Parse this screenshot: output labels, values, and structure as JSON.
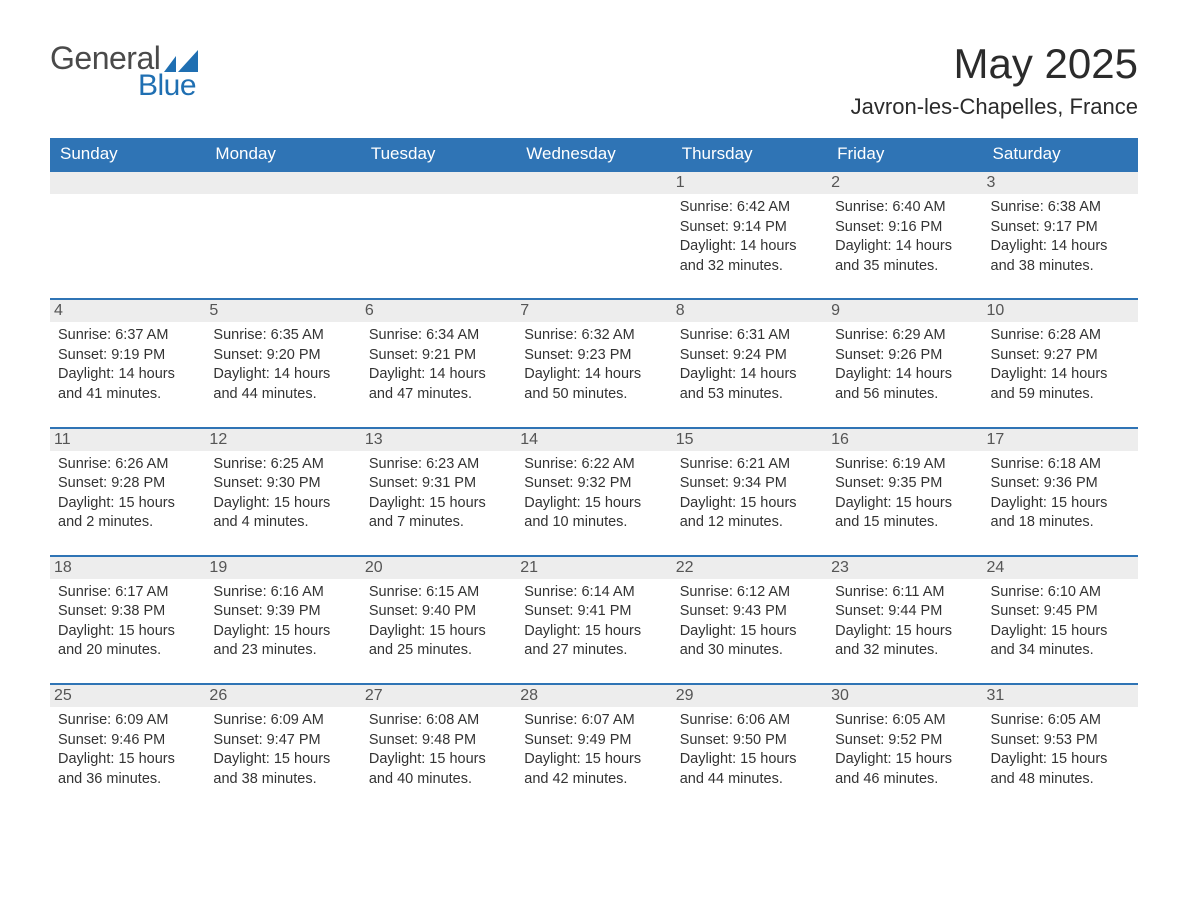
{
  "logo": {
    "word1": "General",
    "word2": "Blue",
    "accent_color": "#1f6fb2"
  },
  "title": "May 2025",
  "subtitle": "Javron-les-Chapelles, France",
  "colors": {
    "header_bg": "#2f74b5",
    "header_text": "#ffffff",
    "row_border": "#2f74b5",
    "daynum_bg": "#ededed",
    "daynum_text": "#555555",
    "body_text": "#333333",
    "page_bg": "#ffffff"
  },
  "typography": {
    "title_fontsize": 42,
    "subtitle_fontsize": 22,
    "header_fontsize": 17,
    "daynum_fontsize": 16,
    "info_fontsize": 14.5
  },
  "weekdays": [
    "Sunday",
    "Monday",
    "Tuesday",
    "Wednesday",
    "Thursday",
    "Friday",
    "Saturday"
  ],
  "weeks": [
    [
      null,
      null,
      null,
      null,
      {
        "day": "1",
        "sunrise": "6:42 AM",
        "sunset": "9:14 PM",
        "daylight": "14 hours and 32 minutes."
      },
      {
        "day": "2",
        "sunrise": "6:40 AM",
        "sunset": "9:16 PM",
        "daylight": "14 hours and 35 minutes."
      },
      {
        "day": "3",
        "sunrise": "6:38 AM",
        "sunset": "9:17 PM",
        "daylight": "14 hours and 38 minutes."
      }
    ],
    [
      {
        "day": "4",
        "sunrise": "6:37 AM",
        "sunset": "9:19 PM",
        "daylight": "14 hours and 41 minutes."
      },
      {
        "day": "5",
        "sunrise": "6:35 AM",
        "sunset": "9:20 PM",
        "daylight": "14 hours and 44 minutes."
      },
      {
        "day": "6",
        "sunrise": "6:34 AM",
        "sunset": "9:21 PM",
        "daylight": "14 hours and 47 minutes."
      },
      {
        "day": "7",
        "sunrise": "6:32 AM",
        "sunset": "9:23 PM",
        "daylight": "14 hours and 50 minutes."
      },
      {
        "day": "8",
        "sunrise": "6:31 AM",
        "sunset": "9:24 PM",
        "daylight": "14 hours and 53 minutes."
      },
      {
        "day": "9",
        "sunrise": "6:29 AM",
        "sunset": "9:26 PM",
        "daylight": "14 hours and 56 minutes."
      },
      {
        "day": "10",
        "sunrise": "6:28 AM",
        "sunset": "9:27 PM",
        "daylight": "14 hours and 59 minutes."
      }
    ],
    [
      {
        "day": "11",
        "sunrise": "6:26 AM",
        "sunset": "9:28 PM",
        "daylight": "15 hours and 2 minutes."
      },
      {
        "day": "12",
        "sunrise": "6:25 AM",
        "sunset": "9:30 PM",
        "daylight": "15 hours and 4 minutes."
      },
      {
        "day": "13",
        "sunrise": "6:23 AM",
        "sunset": "9:31 PM",
        "daylight": "15 hours and 7 minutes."
      },
      {
        "day": "14",
        "sunrise": "6:22 AM",
        "sunset": "9:32 PM",
        "daylight": "15 hours and 10 minutes."
      },
      {
        "day": "15",
        "sunrise": "6:21 AM",
        "sunset": "9:34 PM",
        "daylight": "15 hours and 12 minutes."
      },
      {
        "day": "16",
        "sunrise": "6:19 AM",
        "sunset": "9:35 PM",
        "daylight": "15 hours and 15 minutes."
      },
      {
        "day": "17",
        "sunrise": "6:18 AM",
        "sunset": "9:36 PM",
        "daylight": "15 hours and 18 minutes."
      }
    ],
    [
      {
        "day": "18",
        "sunrise": "6:17 AM",
        "sunset": "9:38 PM",
        "daylight": "15 hours and 20 minutes."
      },
      {
        "day": "19",
        "sunrise": "6:16 AM",
        "sunset": "9:39 PM",
        "daylight": "15 hours and 23 minutes."
      },
      {
        "day": "20",
        "sunrise": "6:15 AM",
        "sunset": "9:40 PM",
        "daylight": "15 hours and 25 minutes."
      },
      {
        "day": "21",
        "sunrise": "6:14 AM",
        "sunset": "9:41 PM",
        "daylight": "15 hours and 27 minutes."
      },
      {
        "day": "22",
        "sunrise": "6:12 AM",
        "sunset": "9:43 PM",
        "daylight": "15 hours and 30 minutes."
      },
      {
        "day": "23",
        "sunrise": "6:11 AM",
        "sunset": "9:44 PM",
        "daylight": "15 hours and 32 minutes."
      },
      {
        "day": "24",
        "sunrise": "6:10 AM",
        "sunset": "9:45 PM",
        "daylight": "15 hours and 34 minutes."
      }
    ],
    [
      {
        "day": "25",
        "sunrise": "6:09 AM",
        "sunset": "9:46 PM",
        "daylight": "15 hours and 36 minutes."
      },
      {
        "day": "26",
        "sunrise": "6:09 AM",
        "sunset": "9:47 PM",
        "daylight": "15 hours and 38 minutes."
      },
      {
        "day": "27",
        "sunrise": "6:08 AM",
        "sunset": "9:48 PM",
        "daylight": "15 hours and 40 minutes."
      },
      {
        "day": "28",
        "sunrise": "6:07 AM",
        "sunset": "9:49 PM",
        "daylight": "15 hours and 42 minutes."
      },
      {
        "day": "29",
        "sunrise": "6:06 AM",
        "sunset": "9:50 PM",
        "daylight": "15 hours and 44 minutes."
      },
      {
        "day": "30",
        "sunrise": "6:05 AM",
        "sunset": "9:52 PM",
        "daylight": "15 hours and 46 minutes."
      },
      {
        "day": "31",
        "sunrise": "6:05 AM",
        "sunset": "9:53 PM",
        "daylight": "15 hours and 48 minutes."
      }
    ]
  ],
  "labels": {
    "sunrise": "Sunrise: ",
    "sunset": "Sunset: ",
    "daylight": "Daylight: "
  }
}
